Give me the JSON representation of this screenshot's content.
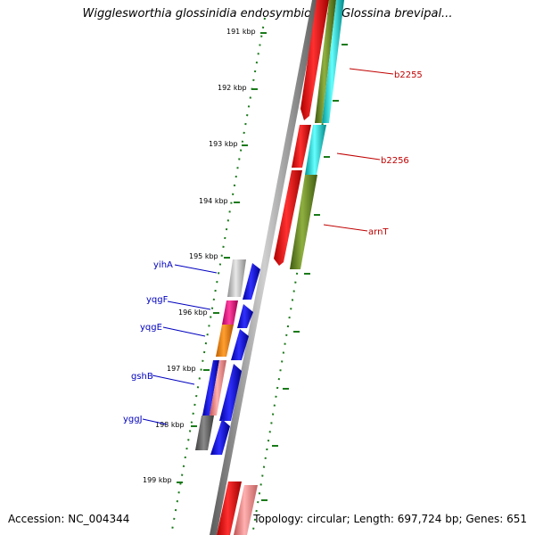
{
  "title": "Wigglesworthia glossinidia endosymbiont of Glossina brevipal...",
  "footer": {
    "accession": "Accession: NC_004344",
    "summary": "Topology: circular; Length: 697,724 bp; Genes: 651"
  },
  "ticks": [
    "191 kbp",
    "192 kbp",
    "193 kbp",
    "194 kbp",
    "195 kbp",
    "196 kbp",
    "197 kbp",
    "198 kbp",
    "199 kbp"
  ],
  "outer_labels": [
    "b2255",
    "b2256",
    "arnT"
  ],
  "inner_labels": [
    "yihA",
    "yqgF",
    "yqgE",
    "gshB",
    "yggJ"
  ],
  "colors": {
    "backbone": "#8a8a8a",
    "tick": "#1a7a1a",
    "outer_label": "#c00000",
    "inner_label": "#0000c0",
    "cds_red": "#ff0000",
    "cds_pink": "#f08080",
    "olive": "#6b8e23",
    "cyan": "#00cccc",
    "blue": "#0000ff",
    "grey": "#bdbdbd",
    "dark_grey": "#666666",
    "magenta": "#ff1493",
    "orange": "#ff8c00"
  }
}
